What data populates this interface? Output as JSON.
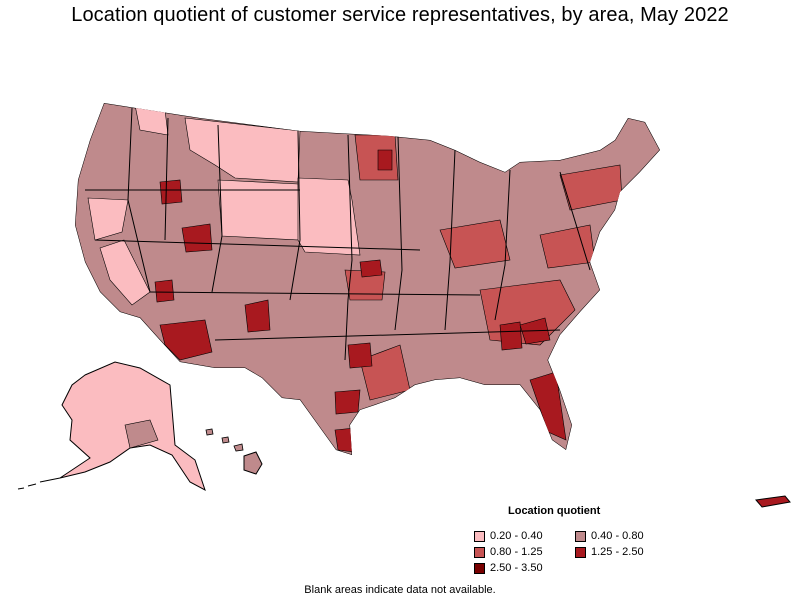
{
  "title": "Location quotient of customer service representatives, by area, May 2022",
  "legend": {
    "title": "Location quotient",
    "items": [
      {
        "label": "0.20 - 0.40",
        "color": "#fbbcc0"
      },
      {
        "label": "0.40 - 0.80",
        "color": "#bf8a8c"
      },
      {
        "label": "0.80 - 1.25",
        "color": "#c75454"
      },
      {
        "label": "1.25 - 2.50",
        "color": "#a8191f"
      },
      {
        "label": "2.50 - 3.50",
        "color": "#780000"
      }
    ]
  },
  "note": "Blank areas indicate data not available."
}
